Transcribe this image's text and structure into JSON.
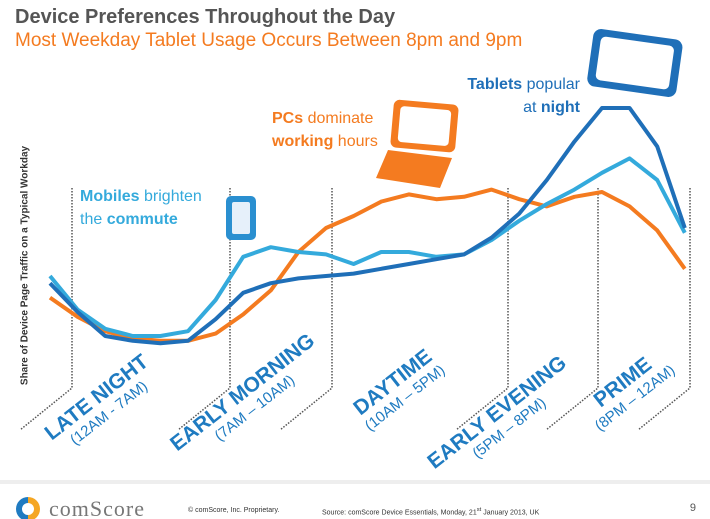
{
  "header": {
    "title": "Device Preferences Throughout the Day",
    "subtitle": "Most Weekday Tablet Usage Occurs Between 8pm and 9pm"
  },
  "annotations": {
    "tablets": {
      "bold1": "Tablets",
      "text1": " popular",
      "text2": "at ",
      "bold2": "night"
    },
    "pcs": {
      "bold1": "PCs",
      "text1": " dominate",
      "bold2": "working",
      "text2": " hours"
    },
    "mobiles": {
      "bold1": "Mobiles",
      "text1": " brighten",
      "text2": "the ",
      "bold2": "commute"
    }
  },
  "segments": [
    {
      "name": "LATE NIGHT",
      "range": "(12AM - 7AM)"
    },
    {
      "name": "EARLY MORNING",
      "range": "(7AM – 10AM)"
    },
    {
      "name": "DAYTIME",
      "range": "(10AM – 5PM)"
    },
    {
      "name": "EARLY EVENING",
      "range": "(5PM – 8PM)"
    },
    {
      "name": "PRIME",
      "range": "(8PM – 12AM)"
    }
  ],
  "chart_data": {
    "type": "line",
    "title": "Device Preferences Throughout the Day",
    "ylabel": "Share of Device Page Traffic on a Typical Workday",
    "x": [
      0,
      1,
      2,
      3,
      4,
      5,
      6,
      7,
      8,
      9,
      10,
      11,
      12,
      13,
      14,
      15,
      16,
      17,
      18,
      19,
      20,
      21,
      22,
      23
    ],
    "ylim": [
      0,
      100
    ],
    "grid": false,
    "series": [
      {
        "name": "Tablets",
        "color": "#1f6fb8",
        "values": [
          27,
          15,
          5,
          3,
          2,
          3,
          12,
          23,
          27,
          29,
          30,
          31,
          33,
          35,
          37,
          39,
          46,
          56,
          70,
          86,
          100,
          100,
          84,
          50
        ]
      },
      {
        "name": "Mobiles",
        "color": "#34aadc",
        "values": [
          30,
          16,
          8,
          5,
          5,
          7,
          20,
          38,
          42,
          40,
          39,
          35,
          40,
          40,
          38,
          39,
          45,
          53,
          60,
          66,
          73,
          79,
          70,
          48
        ]
      },
      {
        "name": "PCs",
        "color": "#f47b20",
        "values": [
          21,
          13,
          7,
          4,
          3,
          3,
          6,
          14,
          24,
          40,
          50,
          55,
          61,
          64,
          62,
          63,
          66,
          62,
          59,
          63,
          65,
          59,
          49,
          33
        ]
      }
    ]
  },
  "footer": {
    "logo": "comScore",
    "copyright": "© comScore, Inc.   Proprietary.",
    "source_pre": "Source: comScore Device Essentials, Monday, 21",
    "source_sup": "st",
    "source_post": " January 2013, UK",
    "page": "9"
  }
}
